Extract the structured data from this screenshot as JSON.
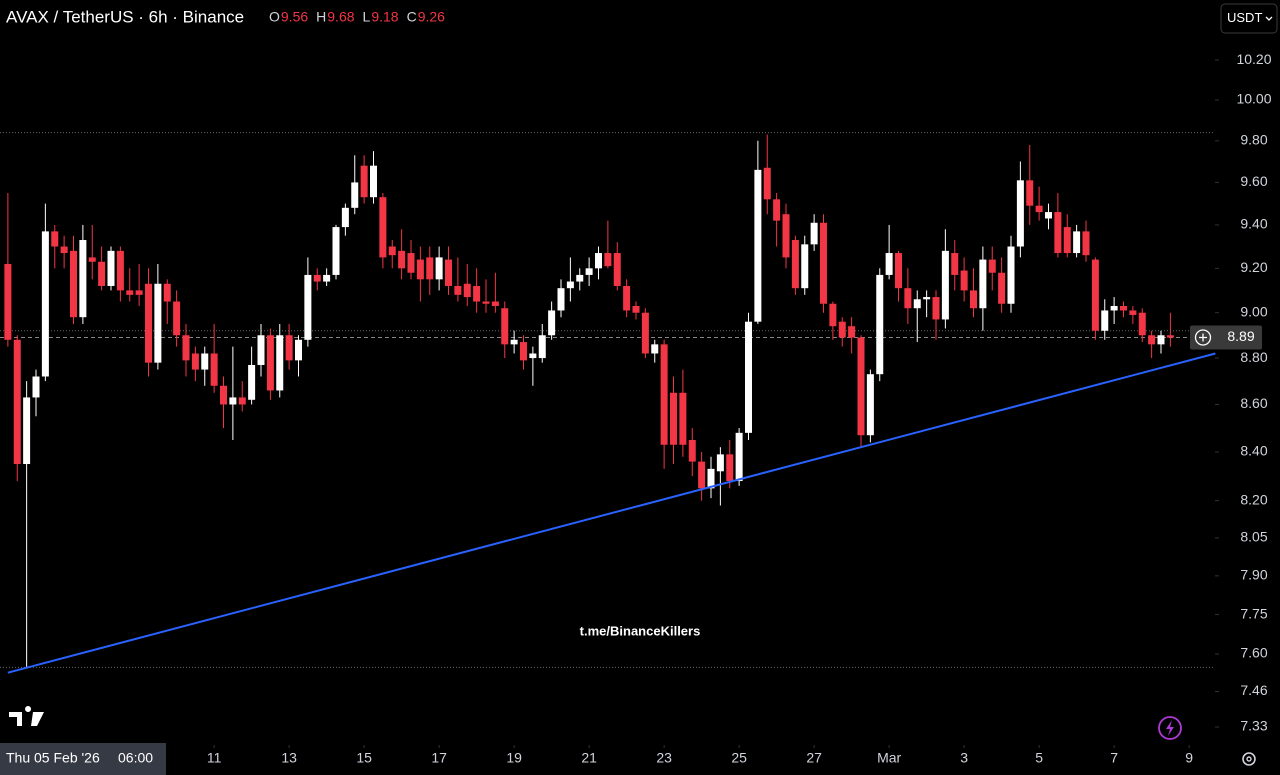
{
  "header": {
    "symbol": "AVAX / TetherUS · 6h · Binance",
    "ohlc": [
      {
        "key": "O",
        "value": 9.56
      },
      {
        "key": "H",
        "value": 9.68
      },
      {
        "key": "L",
        "value": 9.18
      },
      {
        "key": "C",
        "value": 9.26
      }
    ]
  },
  "currency": "USDT",
  "watermark": "t.me/BinanceKillers",
  "crosshair": {
    "date": "Thu 05 Feb '26",
    "time": "06:00"
  },
  "chart_data": {
    "type": "candlestick",
    "log_scale": true,
    "grid": false,
    "up_color": "#ffffff",
    "down_color": "#f23645",
    "xlim": [
      5.29,
      37.69
    ],
    "ylim": [
      7.265,
      10.508
    ],
    "xticks": [
      11,
      13,
      15,
      17,
      19,
      21,
      23,
      25,
      27,
      {
        "value": 29,
        "label": "Mar"
      },
      {
        "value": 31,
        "label": "3"
      },
      {
        "value": 33,
        "label": "5"
      },
      {
        "value": 35,
        "label": "7"
      },
      {
        "value": 37,
        "label": "9"
      }
    ],
    "yticks": [
      {
        "value": 10.2,
        "label": "10.20"
      },
      {
        "value": 10.0,
        "label": "10.00"
      },
      {
        "value": 9.8,
        "label": "9.80"
      },
      {
        "value": 9.6,
        "label": "9.60"
      },
      {
        "value": 9.4,
        "label": "9.40"
      },
      {
        "value": 9.2,
        "label": "9.20"
      },
      {
        "value": 9.0,
        "label": "9.00"
      },
      {
        "value": 8.8,
        "label": "8.80"
      },
      {
        "value": 8.6,
        "label": "8.60"
      },
      {
        "value": 8.4,
        "label": "8.40"
      },
      {
        "value": 8.2,
        "label": "8.20"
      },
      {
        "value": 8.05,
        "label": "8.05"
      },
      {
        "value": 7.9,
        "label": "7.90"
      },
      {
        "value": 7.75,
        "label": "7.75"
      },
      {
        "value": 7.6,
        "label": "7.60"
      },
      {
        "value": 7.46,
        "label": "7.46"
      },
      {
        "value": 7.33,
        "label": "7.33"
      }
    ],
    "last_price": 8.89,
    "hlines": [
      9.84,
      8.92,
      7.55
    ],
    "trendline": {
      "color": "#2962ff",
      "x": [
        5.5,
        37.7
      ],
      "y": [
        7.53,
        8.82
      ]
    },
    "x": [
      5.5,
      5.75,
      6,
      6.25,
      6.5,
      6.75,
      7,
      7.25,
      7.5,
      7.75,
      8,
      8.25,
      8.5,
      8.75,
      9,
      9.25,
      9.5,
      9.75,
      10,
      10.25,
      10.5,
      10.75,
      11,
      11.25,
      11.5,
      11.75,
      12,
      12.25,
      12.5,
      12.75,
      13,
      13.25,
      13.5,
      13.75,
      14,
      14.25,
      14.5,
      14.75,
      15,
      15.25,
      15.5,
      15.75,
      16,
      16.25,
      16.5,
      16.75,
      17,
      17.25,
      17.5,
      17.75,
      18,
      18.25,
      18.5,
      18.75,
      19,
      19.25,
      19.5,
      19.75,
      20,
      20.25,
      20.5,
      20.75,
      21,
      21.25,
      21.5,
      21.75,
      22,
      22.25,
      22.5,
      22.75,
      23,
      23.25,
      23.5,
      23.75,
      24,
      24.25,
      24.5,
      24.75,
      25,
      25.25,
      25.5,
      25.75,
      26,
      26.25,
      26.5,
      26.75,
      27,
      27.25,
      27.5,
      27.75,
      28,
      28.25,
      28.5,
      28.75,
      29,
      29.25,
      29.5,
      29.75,
      30,
      30.25,
      30.5,
      30.75,
      31,
      31.25,
      31.5,
      31.75,
      32,
      32.25,
      32.5,
      32.75,
      33,
      33.25,
      33.5,
      33.75,
      34,
      34.25,
      34.5,
      34.75,
      35,
      35.25,
      35.5,
      35.75,
      36,
      36.25,
      36.5
    ],
    "open": [
      9.22,
      8.88,
      8.35,
      8.63,
      8.72,
      9.37,
      9.3,
      9.28,
      8.98,
      9.25,
      9.23,
      9.12,
      9.28,
      9.1,
      9.1,
      9.13,
      8.78,
      9.13,
      9.05,
      8.9,
      8.82,
      8.75,
      8.82,
      8.68,
      8.6,
      8.63,
      8.62,
      8.77,
      8.9,
      8.66,
      8.9,
      8.79,
      8.88,
      9.17,
      9.14,
      9.17,
      9.39,
      9.48,
      9.68,
      9.53,
      9.53,
      9.3,
      9.28,
      9.27,
      9.24,
      9.25,
      9.15,
      9.24,
      9.12,
      9.13,
      9.12,
      9.05,
      9.05,
      9.02,
      8.86,
      8.87,
      8.8,
      8.8,
      8.9,
      9.01,
      9.11,
      9.14,
      9.17,
      9.2,
      9.27,
      9.27,
      9.12,
      9.03,
      9.0,
      8.82,
      8.86,
      8.65,
      8.65,
      8.45,
      8.36,
      8.25,
      8.32,
      8.39,
      8.28,
      8.48,
      8.96,
      9.67,
      9.52,
      9.45,
      9.33,
      9.11,
      9.31,
      9.41,
      9.04,
      8.96,
      8.94,
      8.89,
      8.47,
      8.73,
      9.17,
      9.27,
      9.11,
      9.02,
      9.06,
      9.07,
      8.97,
      9.27,
      9.19,
      9.1,
      9.02,
      9.24,
      9.18,
      9.04,
      9.3,
      9.61,
      9.49,
      9.43,
      9.46,
      9.39,
      9.27,
      9.37,
      9.24,
      8.92,
      9.01,
      9.03,
      9.01,
      9.0,
      8.9,
      8.86,
      8.9
    ],
    "high": [
      9.55,
      8.9,
      8.7,
      8.75,
      9.5,
      9.4,
      9.35,
      9.35,
      9.4,
      9.4,
      9.3,
      9.3,
      9.3,
      9.2,
      9.22,
      9.2,
      9.22,
      9.15,
      9.1,
      8.95,
      8.85,
      8.85,
      8.95,
      8.72,
      8.85,
      8.7,
      8.85,
      8.95,
      8.93,
      8.95,
      8.95,
      8.9,
      9.25,
      9.2,
      9.2,
      9.4,
      9.5,
      9.73,
      9.73,
      9.75,
      9.55,
      9.33,
      9.38,
      9.33,
      9.3,
      9.3,
      9.3,
      9.3,
      9.25,
      9.22,
      9.2,
      9.15,
      9.18,
      9.05,
      8.92,
      8.9,
      8.85,
      8.95,
      9.05,
      9.15,
      9.25,
      9.2,
      9.25,
      9.3,
      9.42,
      9.32,
      9.15,
      9.05,
      9.02,
      8.88,
      8.88,
      8.72,
      8.75,
      8.5,
      8.4,
      8.38,
      8.42,
      8.45,
      8.5,
      9.0,
      9.8,
      9.83,
      9.55,
      9.5,
      9.35,
      9.35,
      9.45,
      9.45,
      9.05,
      8.98,
      8.98,
      8.9,
      8.75,
      9.2,
      9.4,
      9.28,
      9.2,
      9.1,
      9.1,
      9.1,
      9.38,
      9.33,
      9.25,
      9.2,
      9.3,
      9.3,
      9.25,
      9.35,
      9.7,
      9.78,
      9.58,
      9.5,
      9.55,
      9.45,
      9.4,
      9.42,
      9.25,
      9.06,
      9.07,
      9.05,
      9.03,
      9.02,
      8.92,
      8.92,
      9.0
    ],
    "low": [
      8.85,
      8.28,
      7.55,
      8.55,
      8.7,
      9.2,
      9.2,
      8.95,
      8.95,
      9.15,
      9.1,
      9.1,
      9.05,
      9.05,
      9.03,
      8.72,
      8.75,
      8.95,
      8.85,
      8.72,
      8.7,
      8.68,
      8.65,
      8.5,
      8.45,
      8.57,
      8.6,
      8.72,
      8.62,
      8.63,
      8.75,
      8.72,
      8.85,
      9.1,
      9.12,
      9.15,
      9.35,
      9.45,
      9.5,
      9.5,
      9.2,
      9.2,
      9.15,
      9.15,
      9.05,
      9.08,
      9.1,
      9.08,
      9.05,
      9.03,
      9.0,
      9.0,
      9.0,
      8.8,
      8.82,
      8.75,
      8.68,
      8.78,
      8.88,
      8.98,
      9.05,
      9.1,
      9.12,
      9.15,
      9.2,
      9.1,
      8.98,
      8.97,
      8.8,
      8.78,
      8.33,
      8.35,
      8.38,
      8.3,
      8.2,
      8.21,
      8.18,
      8.25,
      8.26,
      8.45,
      8.95,
      9.45,
      9.3,
      9.2,
      9.08,
      9.08,
      9.28,
      9.0,
      8.88,
      8.85,
      8.82,
      8.42,
      8.44,
      8.7,
      9.15,
      9.05,
      8.95,
      8.87,
      8.98,
      8.88,
      8.93,
      9.1,
      9.05,
      8.98,
      8.92,
      9.1,
      9.0,
      9.0,
      9.25,
      9.4,
      9.42,
      9.38,
      9.25,
      9.25,
      9.25,
      9.23,
      8.88,
      8.88,
      8.95,
      8.98,
      8.95,
      8.87,
      8.8,
      8.82,
      8.85
    ],
    "close": [
      8.88,
      8.35,
      8.63,
      8.72,
      9.37,
      9.3,
      9.27,
      8.98,
      9.33,
      9.23,
      9.12,
      9.28,
      9.1,
      9.08,
      9.08,
      8.78,
      9.13,
      9.05,
      8.9,
      8.79,
      8.75,
      8.82,
      8.68,
      8.6,
      8.63,
      8.6,
      8.77,
      8.9,
      8.66,
      8.9,
      8.79,
      8.88,
      9.17,
      9.14,
      9.17,
      9.39,
      9.48,
      9.6,
      9.53,
      9.68,
      9.25,
      9.26,
      9.2,
      9.18,
      9.15,
      9.15,
      9.25,
      9.12,
      9.08,
      9.07,
      9.05,
      9.04,
      9.03,
      8.86,
      8.88,
      8.79,
      8.82,
      8.9,
      9.01,
      9.11,
      9.14,
      9.17,
      9.2,
      9.27,
      9.21,
      9.12,
      9.01,
      9.0,
      8.82,
      8.86,
      8.43,
      8.43,
      8.43,
      8.36,
      8.25,
      8.33,
      8.39,
      8.28,
      8.48,
      8.96,
      9.66,
      9.52,
      9.42,
      9.25,
      9.11,
      9.31,
      9.41,
      9.04,
      8.94,
      8.89,
      8.89,
      8.47,
      8.73,
      9.17,
      9.27,
      9.11,
      9.02,
      9.06,
      9.07,
      8.97,
      9.28,
      9.17,
      9.1,
      9.02,
      9.24,
      9.18,
      9.04,
      9.3,
      9.61,
      9.49,
      9.46,
      9.46,
      9.27,
      9.27,
      9.37,
      9.26,
      8.92,
      9.01,
      9.03,
      9.01,
      8.99,
      8.9,
      8.86,
      8.9,
      8.89
    ]
  }
}
